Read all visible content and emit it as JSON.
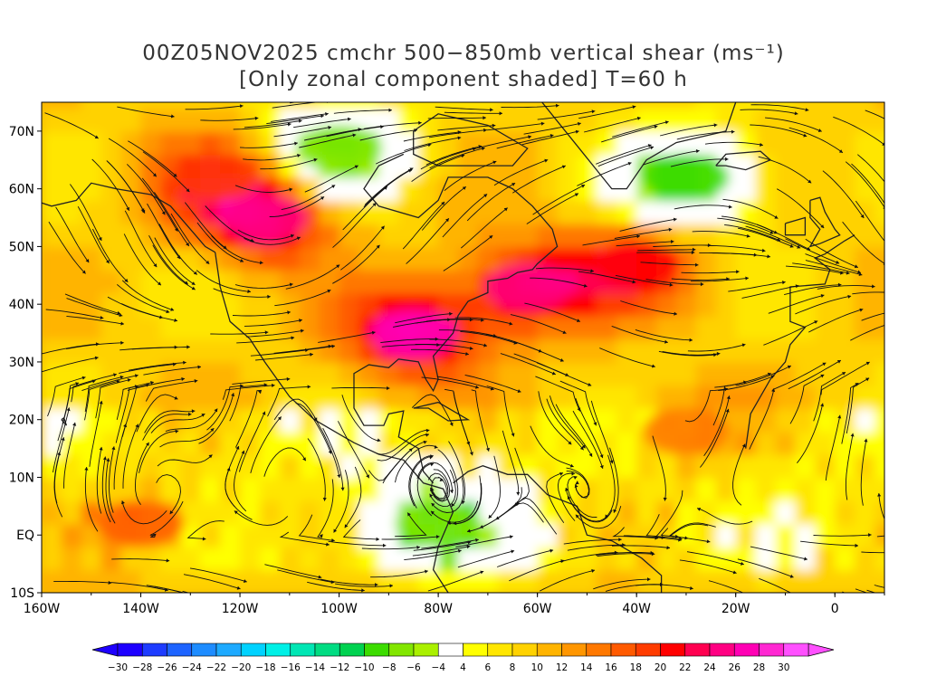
{
  "title_line1": "00Z05NOV2025 cmchr 500−850mb vertical shear (ms⁻¹)",
  "title_line2": "[Only zonal component shaded] T=60 h",
  "map": {
    "lon_range": [
      -160,
      10
    ],
    "lat_range": [
      -10,
      75
    ],
    "x_ticks": [
      {
        "lon": -160,
        "label": "160W"
      },
      {
        "lon": -140,
        "label": "140W"
      },
      {
        "lon": -120,
        "label": "120W"
      },
      {
        "lon": -100,
        "label": "100W"
      },
      {
        "lon": -80,
        "label": "80W"
      },
      {
        "lon": -60,
        "label": "60W"
      },
      {
        "lon": -40,
        "label": "40W"
      },
      {
        "lon": -20,
        "label": "20W"
      },
      {
        "lon": 0,
        "label": "0"
      }
    ],
    "y_ticks": [
      {
        "lat": 70,
        "label": "70N"
      },
      {
        "lat": 60,
        "label": "60N"
      },
      {
        "lat": 50,
        "label": "50N"
      },
      {
        "lat": 40,
        "label": "40N"
      },
      {
        "lat": 30,
        "label": "30N"
      },
      {
        "lat": 20,
        "label": "20N"
      },
      {
        "lat": 10,
        "label": "10N"
      },
      {
        "lat": 0,
        "label": "EQ"
      },
      {
        "lat": -10,
        "label": "10S"
      }
    ],
    "shear_features": [
      {
        "lon": -115,
        "lat": 55,
        "value": 24
      },
      {
        "lon": -85,
        "lat": 35,
        "value": 26
      },
      {
        "lon": -62,
        "lat": 43,
        "value": 24
      },
      {
        "lon": -40,
        "lat": 47,
        "value": 20
      },
      {
        "lon": -140,
        "lat": 2,
        "value": 16
      },
      {
        "lon": -125,
        "lat": 62,
        "value": 18
      },
      {
        "lon": -30,
        "lat": 18,
        "value": 14
      },
      {
        "lon": -80,
        "lat": 2,
        "value": -8
      },
      {
        "lon": -30,
        "lat": 62,
        "value": -10
      },
      {
        "lon": -100,
        "lat": 67,
        "value": -8
      }
    ]
  },
  "colorbar": {
    "levels": [
      -30,
      -28,
      -26,
      -24,
      -22,
      -20,
      -18,
      -16,
      -14,
      -12,
      -10,
      -8,
      -6,
      -4,
      4,
      6,
      8,
      10,
      12,
      14,
      16,
      18,
      20,
      22,
      24,
      26,
      28,
      30
    ],
    "labels": [
      "−30",
      "−28",
      "−26",
      "−24",
      "−22",
      "−20",
      "−18",
      "−16",
      "−14",
      "−12",
      "−10",
      "−8",
      "−6",
      "−4",
      "4",
      "6",
      "8",
      "10",
      "12",
      "14",
      "16",
      "18",
      "20",
      "22",
      "24",
      "26",
      "28",
      "30"
    ],
    "colors": [
      "#1e00ff",
      "#1e3cff",
      "#1e64ff",
      "#1e8cff",
      "#1eaaff",
      "#00d2ff",
      "#00f0e6",
      "#00e6b4",
      "#00dc82",
      "#00d250",
      "#3cdc00",
      "#82e600",
      "#aaf000",
      "#ffffff",
      "#ffff00",
      "#ffe600",
      "#ffd200",
      "#ffb400",
      "#ff9600",
      "#ff7800",
      "#ff5a00",
      "#ff3c00",
      "#ff0000",
      "#ff0050",
      "#ff0082",
      "#ff00b4",
      "#ff28d2",
      "#ff50ff"
    ],
    "below_color": "#1e00ff",
    "above_color": "#ff50ff"
  }
}
